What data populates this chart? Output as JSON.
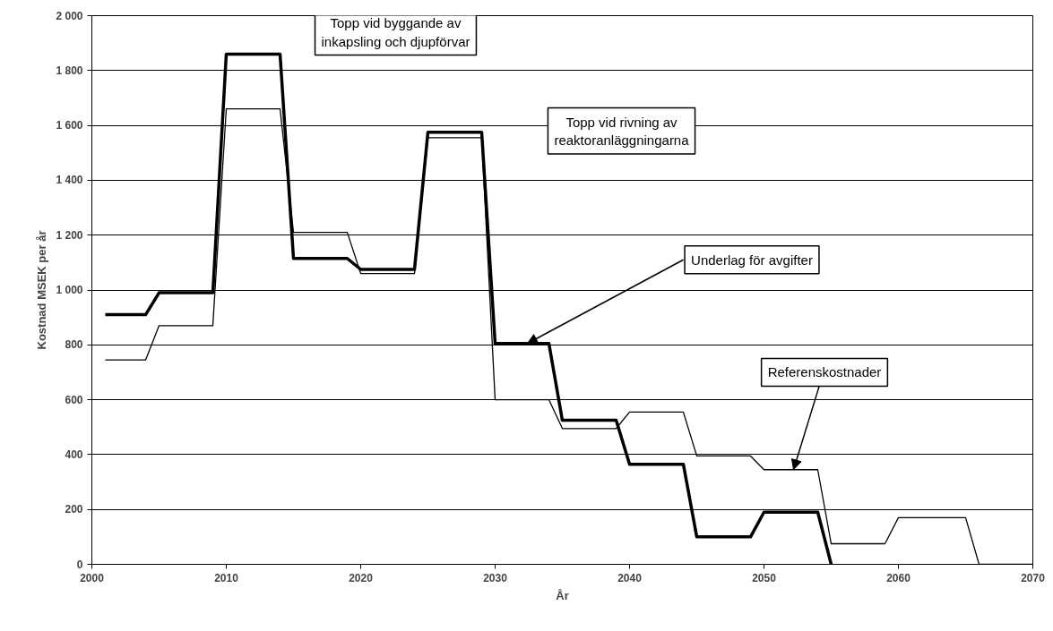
{
  "chart_data": {
    "type": "line",
    "xlabel": "År",
    "ylabel": "Kostnad MSEK per år",
    "xlim": [
      2000,
      2070
    ],
    "xticks": [
      2000,
      2010,
      2020,
      2030,
      2040,
      2050,
      2060,
      2070
    ],
    "ylim": [
      0,
      2000
    ],
    "yticks": [
      {
        "value": 0,
        "label": "0"
      },
      {
        "value": 200,
        "label": "200"
      },
      {
        "value": 400,
        "label": "400"
      },
      {
        "value": 600,
        "label": "600"
      },
      {
        "value": 800,
        "label": "800"
      },
      {
        "value": 1000,
        "label": "1 000"
      },
      {
        "value": 1200,
        "label": "1 200"
      },
      {
        "value": 1400,
        "label": "1 400"
      },
      {
        "value": 1600,
        "label": "1 600"
      },
      {
        "value": 1800,
        "label": "1 800"
      },
      {
        "value": 2000,
        "label": "2 000"
      }
    ],
    "grid": "y",
    "marker": "none",
    "line_style": "solid",
    "series": [
      {
        "color": "#000000",
        "x": [
          2001,
          2004,
          2005,
          2009,
          2010,
          2014,
          2015,
          2019,
          2020,
          2024,
          2025,
          2029,
          2030,
          2034,
          2035,
          2039,
          2040,
          2044,
          2045,
          2049,
          2050,
          2054,
          2055
        ],
        "values": [
          910,
          910,
          990,
          990,
          1860,
          1860,
          1115,
          1115,
          1075,
          1075,
          1575,
          1575,
          805,
          805,
          525,
          525,
          365,
          365,
          100,
          100,
          190,
          190,
          0
        ]
      },
      {
        "color": "#000000",
        "x": [
          2001,
          2004,
          2005,
          2009,
          2010,
          2014,
          2015,
          2019,
          2020,
          2024,
          2025,
          2029,
          2030,
          2034,
          2035,
          2039,
          2040,
          2044,
          2045,
          2049,
          2050,
          2054,
          2055,
          2059,
          2060,
          2065,
          2066,
          2070
        ],
        "values": [
          745,
          745,
          870,
          870,
          1660,
          1660,
          1210,
          1210,
          1060,
          1060,
          1555,
          1555,
          600,
          600,
          495,
          495,
          555,
          555,
          395,
          395,
          345,
          345,
          75,
          75,
          170,
          170,
          0,
          0
        ]
      }
    ],
    "annotations": [
      "Topp vid byggande av\ninkapsling och djupförvar",
      "Topp vid rivning av\nreaktoranläggningarna",
      {
        "text": "Underlag för avgifter",
        "x": 2032.4,
        "y": 805
      },
      {
        "text": "Referenskostnader",
        "x": 2052.2,
        "y": 345
      }
    ]
  }
}
